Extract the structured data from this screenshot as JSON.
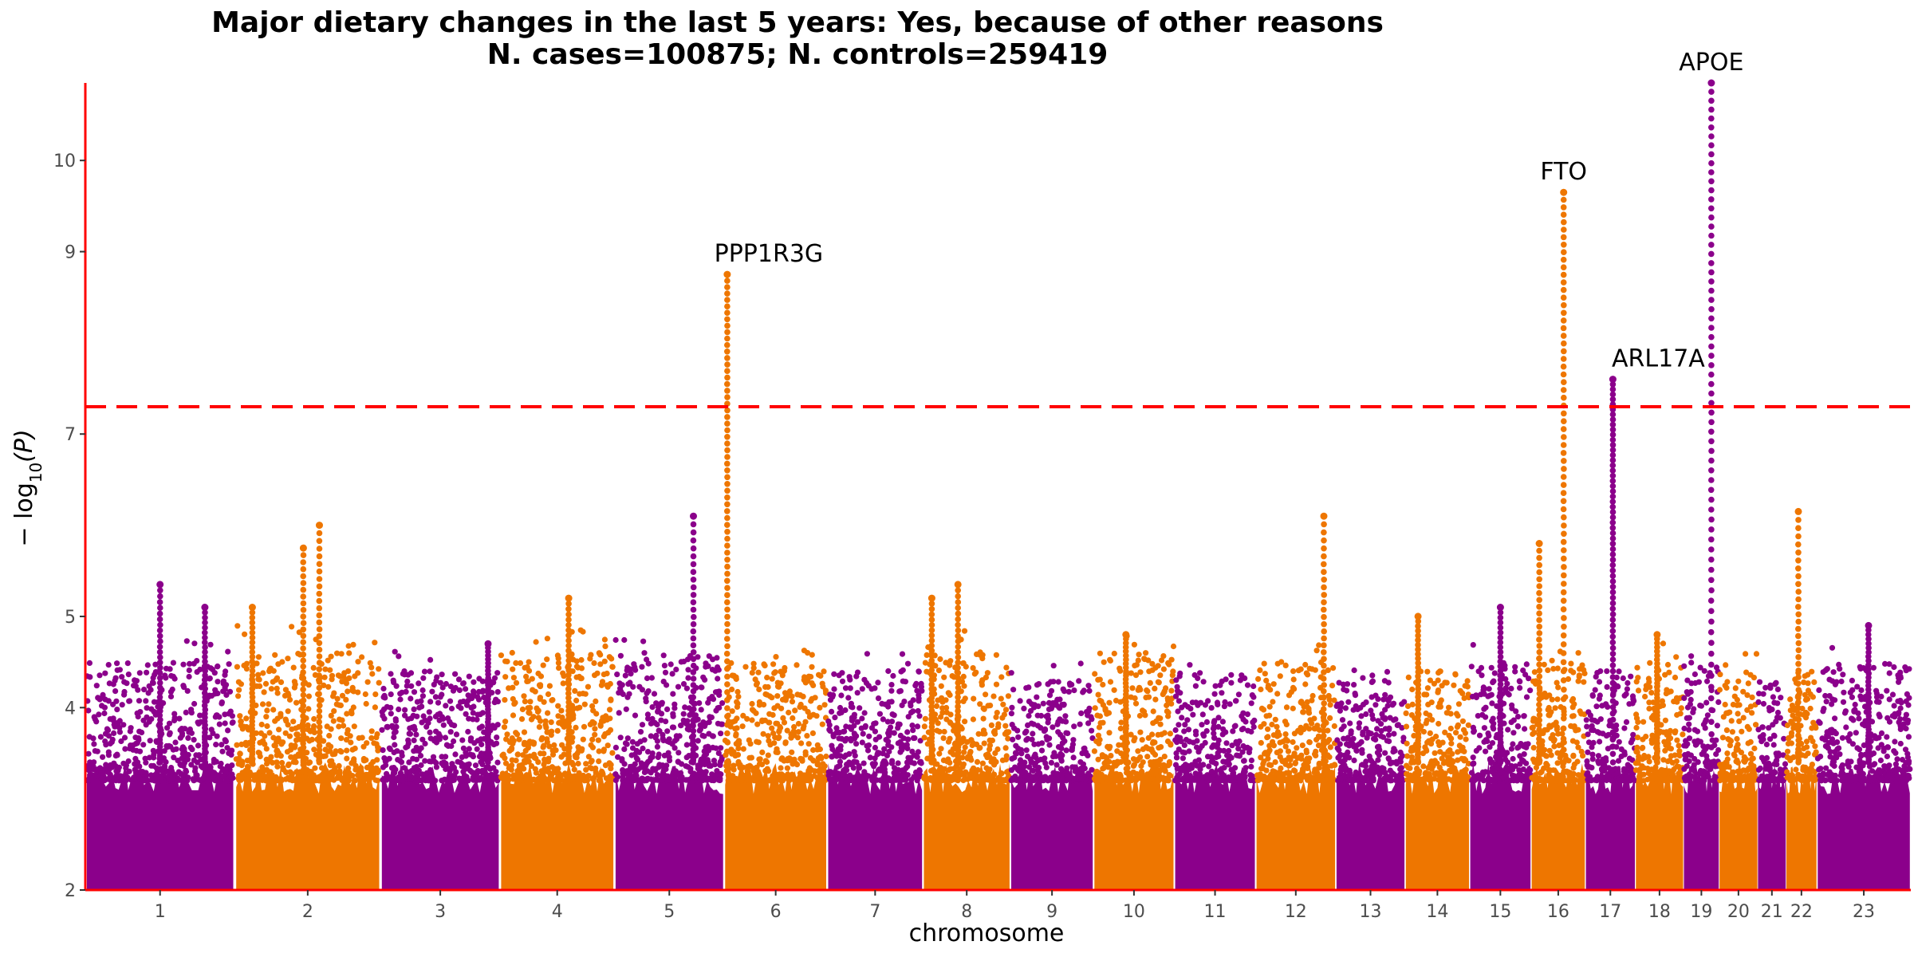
{
  "chart_data": {
    "type": "scatter",
    "title": "Major dietary changes in the last 5 years: Yes, because of other reasons",
    "subtitle": "N. cases=100875; N. controls=259419",
    "xlabel": "chromosome",
    "ylabel_main": "− log",
    "ylabel_sub": "10",
    "ylabel_paren": "(P)",
    "ylim": [
      2,
      10.85
    ],
    "yticks": [
      {
        "value": 2,
        "label": "2"
      },
      {
        "value": 4,
        "label": "4"
      },
      {
        "value": 5,
        "label": "5"
      },
      {
        "value": 7,
        "label": "7"
      },
      {
        "value": 9,
        "label": "9"
      },
      {
        "value": 10,
        "label": "10"
      }
    ],
    "significance_threshold": 7.3,
    "colors": {
      "odd": "#8B008B",
      "even": "#EE7600",
      "threshold": "#FF0000",
      "axis": "#FF0000"
    },
    "chromosomes": [
      {
        "label": "1",
        "start": 0,
        "end": 248,
        "base": 4.3,
        "spread": 0.15
      },
      {
        "label": "2",
        "start": 248,
        "end": 490,
        "base": 4.4,
        "spread": 0.2
      },
      {
        "label": "3",
        "start": 490,
        "end": 688,
        "base": 4.2,
        "spread": 0.12
      },
      {
        "label": "4",
        "start": 688,
        "end": 878,
        "base": 4.4,
        "spread": 0.15
      },
      {
        "label": "5",
        "start": 878,
        "end": 1060,
        "base": 4.4,
        "spread": 0.15
      },
      {
        "label": "6",
        "start": 1060,
        "end": 1231,
        "base": 4.3,
        "spread": 0.12
      },
      {
        "label": "7",
        "start": 1231,
        "end": 1390,
        "base": 4.2,
        "spread": 0.12
      },
      {
        "label": "8",
        "start": 1390,
        "end": 1535,
        "base": 4.4,
        "spread": 0.15
      },
      {
        "label": "9",
        "start": 1535,
        "end": 1673,
        "base": 4.1,
        "spread": 0.1
      },
      {
        "label": "10",
        "start": 1673,
        "end": 1807,
        "base": 4.4,
        "spread": 0.12
      },
      {
        "label": "11",
        "start": 1807,
        "end": 1942,
        "base": 4.2,
        "spread": 0.1
      },
      {
        "label": "12",
        "start": 1942,
        "end": 2075,
        "base": 4.3,
        "spread": 0.12
      },
      {
        "label": "13",
        "start": 2075,
        "end": 2190,
        "base": 4.1,
        "spread": 0.08
      },
      {
        "label": "14",
        "start": 2190,
        "end": 2297,
        "base": 4.2,
        "spread": 0.1
      },
      {
        "label": "15",
        "start": 2297,
        "end": 2399,
        "base": 4.3,
        "spread": 0.1
      },
      {
        "label": "16",
        "start": 2399,
        "end": 2489,
        "base": 4.3,
        "spread": 0.1
      },
      {
        "label": "17",
        "start": 2489,
        "end": 2572,
        "base": 4.2,
        "spread": 0.1
      },
      {
        "label": "18",
        "start": 2572,
        "end": 2652,
        "base": 4.3,
        "spread": 0.12
      },
      {
        "label": "19",
        "start": 2652,
        "end": 2711,
        "base": 4.3,
        "spread": 0.1
      },
      {
        "label": "20",
        "start": 2711,
        "end": 2775,
        "base": 4.2,
        "spread": 0.1
      },
      {
        "label": "21",
        "start": 2775,
        "end": 2822,
        "base": 4.1,
        "spread": 0.08
      },
      {
        "label": "22",
        "start": 2822,
        "end": 2873,
        "base": 4.2,
        "spread": 0.1
      },
      {
        "label": "23",
        "start": 2873,
        "end": 3029,
        "base": 4.3,
        "spread": 0.12
      }
    ],
    "peaks": [
      {
        "chr": "1",
        "pos": 0.5,
        "max": 5.35
      },
      {
        "chr": "1",
        "pos": 0.8,
        "max": 5.1
      },
      {
        "chr": "2",
        "pos": 0.58,
        "max": 6.0
      },
      {
        "chr": "2",
        "pos": 0.12,
        "max": 5.1
      },
      {
        "chr": "2",
        "pos": 0.47,
        "max": 5.75
      },
      {
        "chr": "3",
        "pos": 0.9,
        "max": 4.7
      },
      {
        "chr": "4",
        "pos": 0.6,
        "max": 5.2
      },
      {
        "chr": "5",
        "pos": 0.72,
        "max": 6.1
      },
      {
        "chr": "6",
        "pos": 0.03,
        "max": 8.75
      },
      {
        "chr": "8",
        "pos": 0.1,
        "max": 5.2
      },
      {
        "chr": "8",
        "pos": 0.4,
        "max": 5.35
      },
      {
        "chr": "10",
        "pos": 0.4,
        "max": 4.8
      },
      {
        "chr": "12",
        "pos": 0.85,
        "max": 6.1
      },
      {
        "chr": "14",
        "pos": 0.2,
        "max": 5.0
      },
      {
        "chr": "15",
        "pos": 0.5,
        "max": 5.1
      },
      {
        "chr": "16",
        "pos": 0.6,
        "max": 9.65
      },
      {
        "chr": "16",
        "pos": 0.15,
        "max": 5.8
      },
      {
        "chr": "17",
        "pos": 0.55,
        "max": 7.6
      },
      {
        "chr": "18",
        "pos": 0.45,
        "max": 4.8
      },
      {
        "chr": "19",
        "pos": 0.78,
        "max": 10.85
      },
      {
        "chr": "22",
        "pos": 0.4,
        "max": 6.15
      },
      {
        "chr": "23",
        "pos": 0.55,
        "max": 4.9
      }
    ],
    "annotations": [
      {
        "gene": "PPP1R3G",
        "chr": "6",
        "pos": 0.03,
        "y": 8.75
      },
      {
        "gene": "FTO",
        "chr": "16",
        "pos": 0.6,
        "y": 9.65
      },
      {
        "gene": "ARL17A",
        "chr": "17",
        "pos": 0.55,
        "y": 7.6
      },
      {
        "gene": "APOE",
        "chr": "19",
        "pos": 0.78,
        "y": 10.85
      }
    ]
  }
}
